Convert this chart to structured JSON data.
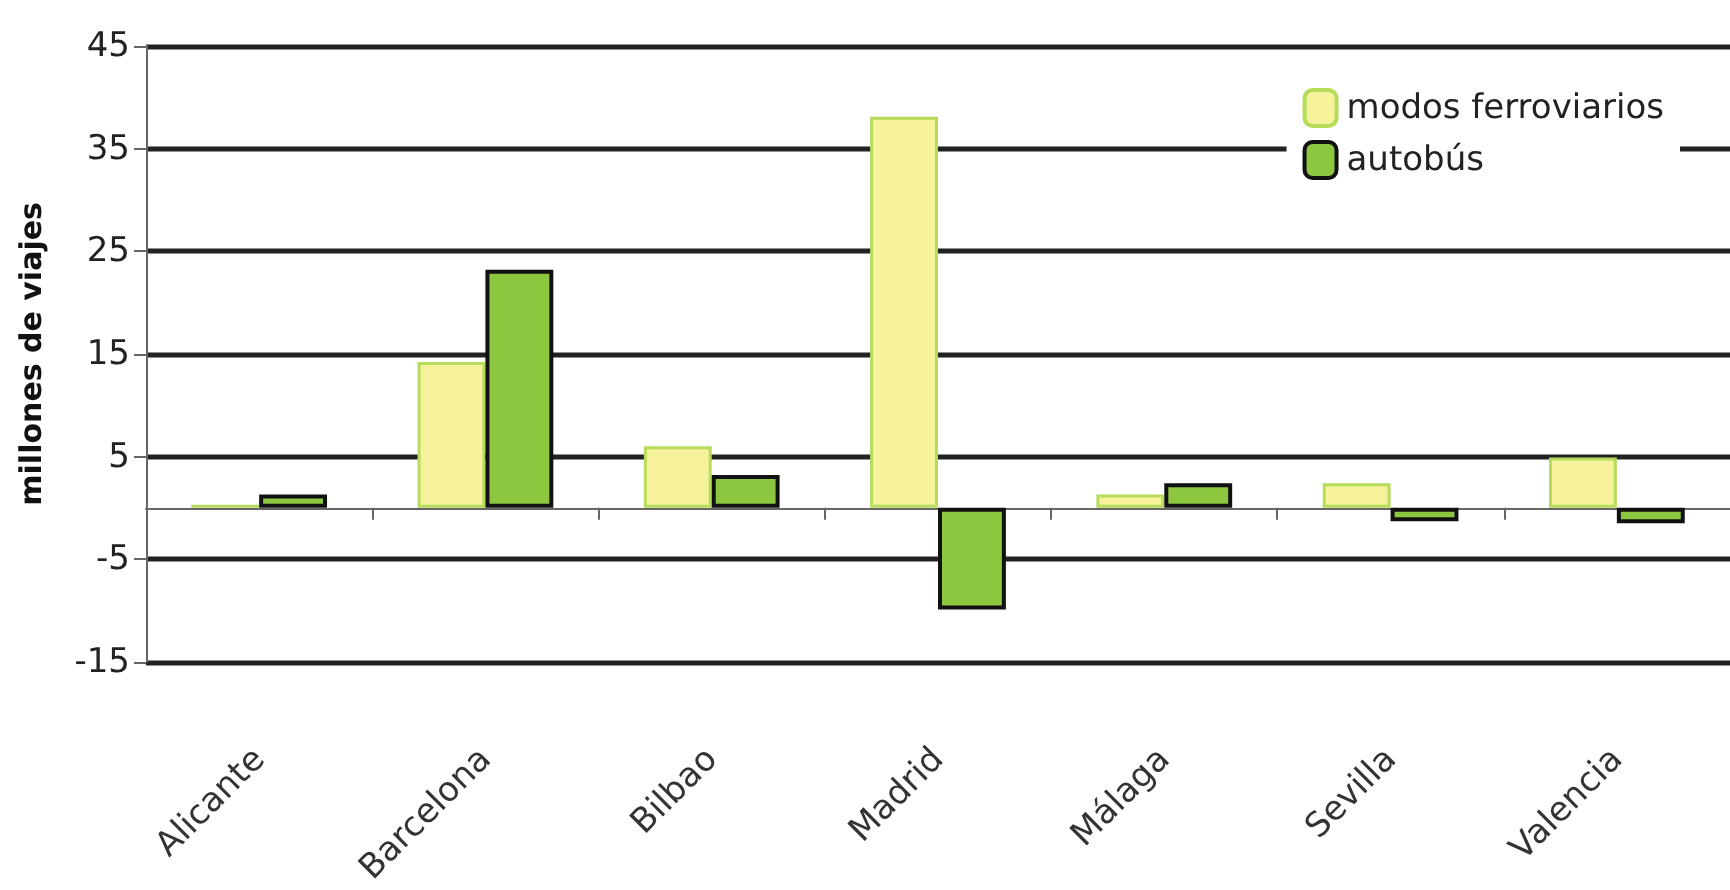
{
  "chart_data": {
    "type": "bar",
    "ylabel": "millones de viajes",
    "categories": [
      "Alicante",
      "Barcelona",
      "Bilbao",
      "Madrid",
      "Málaga",
      "Sevilla",
      "Valencia"
    ],
    "series": [
      {
        "name": "modos ferroviarios",
        "color": "#f5f29b",
        "values": [
          0.3,
          14.2,
          6.0,
          38.1,
          1.3,
          2.4,
          4.9
        ]
      },
      {
        "name": "autobús",
        "color": "#8dc63f",
        "values": [
          1.3,
          23.2,
          3.2,
          -9.9,
          2.4,
          -1.3,
          -1.5
        ]
      }
    ],
    "ylim": [
      -15,
      45
    ],
    "yticks": [
      -15,
      -5,
      5,
      15,
      25,
      35,
      45
    ],
    "grid": "y",
    "legend": "top right"
  }
}
